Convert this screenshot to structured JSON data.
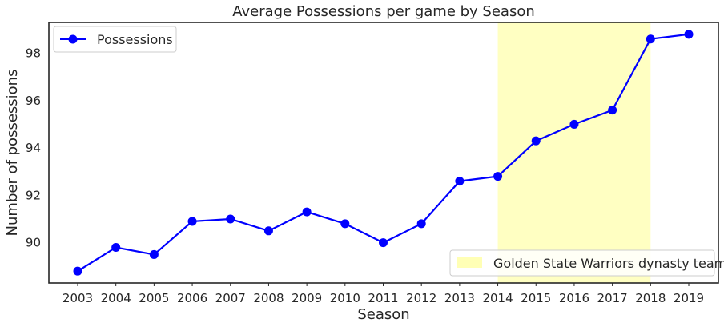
{
  "chart_data": {
    "type": "line",
    "title": "Average Possessions per game by Season",
    "xlabel": "Season",
    "ylabel": "Number of possessions",
    "x": [
      "2003",
      "2004",
      "2005",
      "2006",
      "2007",
      "2008",
      "2009",
      "2010",
      "2011",
      "2012",
      "2013",
      "2014",
      "2015",
      "2016",
      "2017",
      "2018",
      "2019"
    ],
    "series": [
      {
        "name": "Possessions",
        "color": "#0000ff",
        "values": [
          88.8,
          89.8,
          89.5,
          90.9,
          91.0,
          90.5,
          91.3,
          90.8,
          90.0,
          90.8,
          92.6,
          92.8,
          94.3,
          95.0,
          95.6,
          98.6,
          98.8
        ]
      }
    ],
    "ylim": [
      88.3,
      99.3
    ],
    "yticks": [
      90,
      92,
      94,
      96,
      98
    ],
    "grid": false,
    "legend_position": "upper-left",
    "highlight_band": {
      "x_start": "2014",
      "x_end": "2018",
      "label": "Golden State Warriors dynasty team",
      "color": "#ffffa8",
      "legend_position": "lower-right"
    }
  }
}
